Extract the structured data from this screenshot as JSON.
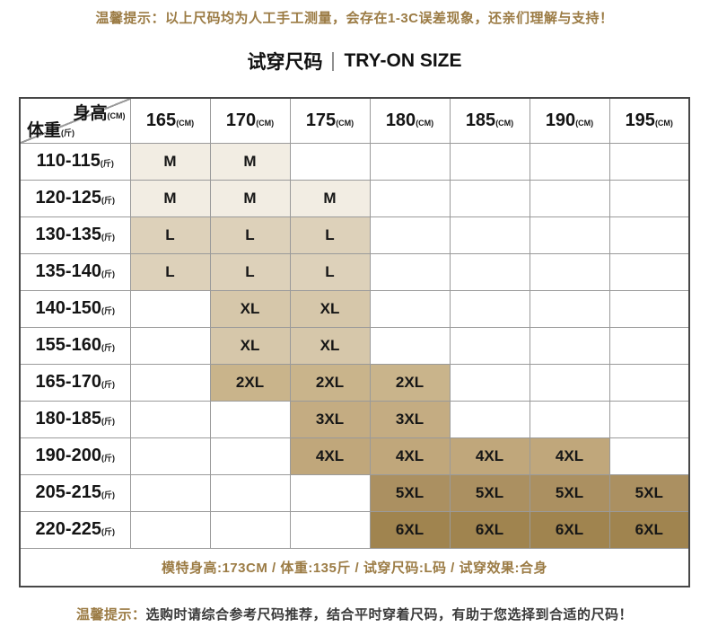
{
  "colors": {
    "gold_text": "#9b7b44",
    "grid_line": "#9a9a9a",
    "outer_border": "#474747",
    "tones": {
      "m": "#f2ede3",
      "l": "#ddd1ba",
      "xl": "#d6c7aa",
      "2xl": "#c9b48b",
      "3xl": "#c4ac82",
      "4xl": "#c0a77b",
      "5xl": "#ab9061",
      "6xl": "#a0844f"
    }
  },
  "top_notice": "温馨提示：以上尺码均为人工手工测量，会存在1-3C误差现象，还亲们理解与支持！",
  "title": {
    "cn": "试穿尺码",
    "en": "TRY-ON SIZE"
  },
  "table": {
    "corner": {
      "top_label": "身高",
      "top_unit": "(CM)",
      "bottom_label": "体重",
      "bottom_unit": "(斤)"
    },
    "columns": [
      {
        "value": "165",
        "unit": "(CM)"
      },
      {
        "value": "170",
        "unit": "(CM)"
      },
      {
        "value": "175",
        "unit": "(CM)"
      },
      {
        "value": "180",
        "unit": "(CM)"
      },
      {
        "value": "185",
        "unit": "(CM)"
      },
      {
        "value": "190",
        "unit": "(CM)"
      },
      {
        "value": "195",
        "unit": "(CM)"
      }
    ],
    "rows": [
      {
        "range": "110-115",
        "unit": "(斤)",
        "cells": [
          {
            "size": "M",
            "tone": "m"
          },
          {
            "size": "M",
            "tone": "m"
          },
          null,
          null,
          null,
          null,
          null
        ]
      },
      {
        "range": "120-125",
        "unit": "(斤)",
        "cells": [
          {
            "size": "M",
            "tone": "m"
          },
          {
            "size": "M",
            "tone": "m"
          },
          {
            "size": "M",
            "tone": "m"
          },
          null,
          null,
          null,
          null
        ]
      },
      {
        "range": "130-135",
        "unit": "(斤)",
        "cells": [
          {
            "size": "L",
            "tone": "l"
          },
          {
            "size": "L",
            "tone": "l"
          },
          {
            "size": "L",
            "tone": "l"
          },
          null,
          null,
          null,
          null
        ]
      },
      {
        "range": "135-140",
        "unit": "(斤)",
        "cells": [
          {
            "size": "L",
            "tone": "l"
          },
          {
            "size": "L",
            "tone": "l"
          },
          {
            "size": "L",
            "tone": "l"
          },
          null,
          null,
          null,
          null
        ]
      },
      {
        "range": "140-150",
        "unit": "(斤)",
        "cells": [
          null,
          {
            "size": "XL",
            "tone": "xl"
          },
          {
            "size": "XL",
            "tone": "xl"
          },
          null,
          null,
          null,
          null
        ]
      },
      {
        "range": "155-160",
        "unit": "(斤)",
        "cells": [
          null,
          {
            "size": "XL",
            "tone": "xl"
          },
          {
            "size": "XL",
            "tone": "xl"
          },
          null,
          null,
          null,
          null
        ]
      },
      {
        "range": "165-170",
        "unit": "(斤)",
        "cells": [
          null,
          {
            "size": "2XL",
            "tone": "2xl"
          },
          {
            "size": "2XL",
            "tone": "2xl"
          },
          {
            "size": "2XL",
            "tone": "2xl"
          },
          null,
          null,
          null
        ]
      },
      {
        "range": "180-185",
        "unit": "(斤)",
        "cells": [
          null,
          null,
          {
            "size": "3XL",
            "tone": "3xl"
          },
          {
            "size": "3XL",
            "tone": "3xl"
          },
          null,
          null,
          null
        ]
      },
      {
        "range": "190-200",
        "unit": "(斤)",
        "cells": [
          null,
          null,
          {
            "size": "4XL",
            "tone": "4xl"
          },
          {
            "size": "4XL",
            "tone": "4xl"
          },
          {
            "size": "4XL",
            "tone": "4xl"
          },
          {
            "size": "4XL",
            "tone": "4xl"
          },
          null
        ]
      },
      {
        "range": "205-215",
        "unit": "(斤)",
        "cells": [
          null,
          null,
          null,
          {
            "size": "5XL",
            "tone": "5xl"
          },
          {
            "size": "5XL",
            "tone": "5xl"
          },
          {
            "size": "5XL",
            "tone": "5xl"
          },
          {
            "size": "5XL",
            "tone": "5xl"
          }
        ]
      },
      {
        "range": "220-225",
        "unit": "(斤)",
        "cells": [
          null,
          null,
          null,
          {
            "size": "6XL",
            "tone": "6xl"
          },
          {
            "size": "6XL",
            "tone": "6xl"
          },
          {
            "size": "6XL",
            "tone": "6xl"
          },
          {
            "size": "6XL",
            "tone": "6xl"
          }
        ]
      }
    ],
    "footer": "模特身高:173CM  /  体重:135斤  /  试穿尺码:L码  /  试穿效果:合身"
  },
  "bottom_notice": {
    "prefix": "温馨提示：",
    "text": "选购时请综合参考尺码推荐，结合平时穿着尺码，有助于您选择到合适的尺码！"
  }
}
